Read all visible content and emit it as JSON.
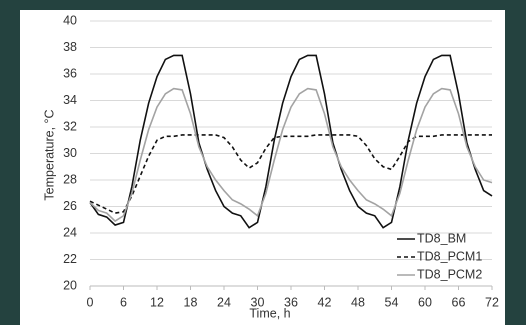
{
  "chart_data": {
    "type": "line",
    "x_label": "Time, h",
    "y_label": "Temperature, °C",
    "x": [
      0,
      1.5,
      3,
      4.5,
      6,
      7.5,
      9,
      10.5,
      12,
      13.5,
      15,
      16.5,
      18,
      19.5,
      21,
      22.5,
      24,
      25.5,
      27,
      28.5,
      30,
      31.5,
      33,
      34.5,
      36,
      37.5,
      39,
      40.5,
      42,
      43.5,
      45,
      46.5,
      48,
      49.5,
      51,
      52.5,
      54,
      55.5,
      57,
      58.5,
      60,
      61.5,
      63,
      64.5,
      66,
      67.5,
      69,
      70.5,
      72
    ],
    "series": [
      {
        "name": "TD8_BM",
        "color": "#111111",
        "dashed": false,
        "values": [
          26.3,
          25.4,
          25.2,
          24.6,
          24.8,
          27.5,
          31,
          33.8,
          35.8,
          37.1,
          37.4,
          37.4,
          34.5,
          30.8,
          28.8,
          27.2,
          26.0,
          25.5,
          25.3,
          24.4,
          24.8,
          27.5,
          31,
          33.8,
          35.8,
          37.1,
          37.4,
          37.4,
          34.5,
          30.8,
          28.8,
          27.2,
          26.0,
          25.5,
          25.3,
          24.4,
          24.8,
          27.5,
          31,
          33.8,
          35.8,
          37.1,
          37.4,
          37.4,
          34.5,
          30.8,
          28.8,
          27.2,
          26.8
        ]
      },
      {
        "name": "TD8_PCM1",
        "color": "#111111",
        "dashed": true,
        "values": [
          26.4,
          26.1,
          25.8,
          25.5,
          25.6,
          26.8,
          28.3,
          29.8,
          31.0,
          31.3,
          31.3,
          31.4,
          31.4,
          31.4,
          31.4,
          31.4,
          31.2,
          30.5,
          29.5,
          28.9,
          29.3,
          30.4,
          31.2,
          31.3,
          31.3,
          31.3,
          31.3,
          31.4,
          31.4,
          31.4,
          31.4,
          31.4,
          31.3,
          30.6,
          29.6,
          29.0,
          28.8,
          29.8,
          30.9,
          31.3,
          31.3,
          31.3,
          31.4,
          31.4,
          31.4,
          31.4,
          31.4,
          31.4,
          31.4
        ]
      },
      {
        "name": "TD8_PCM2",
        "color": "#a3a3a3",
        "dashed": false,
        "values": [
          26.3,
          25.7,
          25.5,
          24.9,
          25.3,
          27,
          29.5,
          31.8,
          33.5,
          34.5,
          34.9,
          34.8,
          33,
          30.5,
          29,
          28,
          27.2,
          26.5,
          26.2,
          25.8,
          25.3,
          27,
          29.5,
          31.8,
          33.5,
          34.5,
          34.9,
          34.8,
          33,
          30.5,
          29,
          28,
          27.2,
          26.5,
          26.2,
          25.8,
          25.3,
          27,
          29.5,
          31.8,
          33.5,
          34.5,
          34.9,
          34.8,
          33,
          30.5,
          29,
          28,
          27.8
        ]
      }
    ],
    "xlim": [
      0,
      72
    ],
    "xticks": [
      0,
      6,
      12,
      18,
      24,
      30,
      36,
      42,
      48,
      54,
      60,
      66,
      72
    ],
    "ylim": [
      20,
      40
    ],
    "yticks": [
      20,
      22,
      24,
      26,
      28,
      30,
      32,
      34,
      36,
      38,
      40
    ],
    "grid": true,
    "legend": "bottom-right"
  }
}
